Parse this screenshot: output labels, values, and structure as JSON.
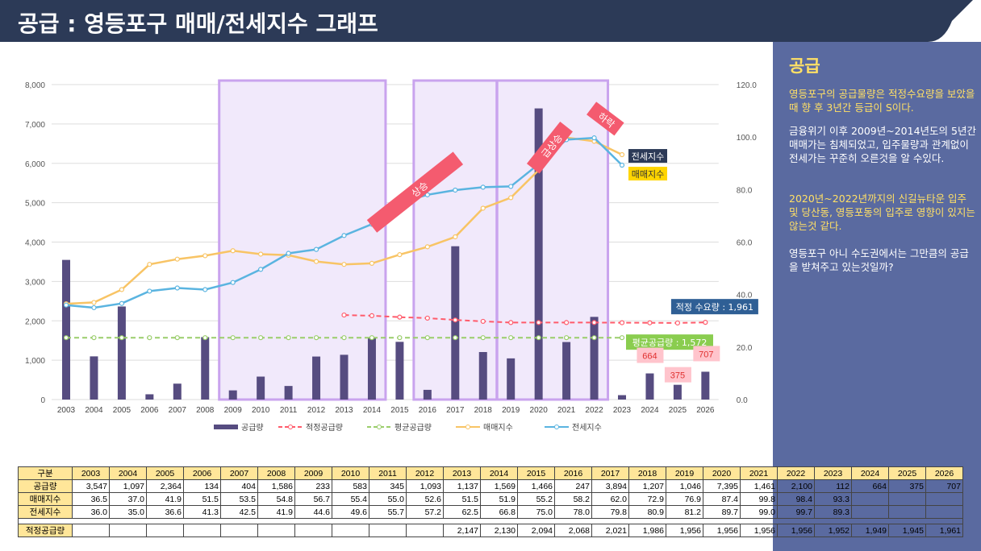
{
  "header": {
    "title": "공급 : 영등포구 매매/전세지수 그래프"
  },
  "sidebar": {
    "title": "공급",
    "p1": "영등포구의 공급물량은 적정수요량을 보았을때 향 후 3년간 등급이 S이다.",
    "p2": "금융위기 이후 2009년~2014년도의 5년간 매매가는 침체되었고, 입주물량과 관계없이 전세가는 꾸준히 오른것을 알 수있다.",
    "p3": "2020년~2022년까지의 신길뉴타운 입주 및 당산동, 영등포동의 입주로 영향이 있지는 않는것 같다.",
    "p4": "영등포구 아니 수도권에서는 그만큼의 공급을 받쳐주고 있는것일까?"
  },
  "chart_data": {
    "type": "bar",
    "categories": [
      "2003",
      "2004",
      "2005",
      "2006",
      "2007",
      "2008",
      "2009",
      "2010",
      "2011",
      "2012",
      "2013",
      "2014",
      "2015",
      "2016",
      "2017",
      "2018",
      "2019",
      "2020",
      "2021",
      "2022",
      "2023",
      "2024",
      "2025",
      "2026"
    ],
    "y_left": {
      "ylim": [
        0,
        8000
      ],
      "ticks": [
        "0",
        "1,000",
        "2,000",
        "3,000",
        "4,000",
        "5,000",
        "6,000",
        "7,000",
        "8,000"
      ]
    },
    "y_right": {
      "ylim": [
        0,
        120
      ],
      "ticks": [
        "0.0",
        "20.0",
        "40.0",
        "60.0",
        "80.0",
        "100.0",
        "120.0"
      ]
    },
    "series": [
      {
        "name": "공급량",
        "type": "bar",
        "axis": "left",
        "color": "#564c80",
        "values": [
          3547,
          1097,
          2364,
          134,
          404,
          1586,
          233,
          583,
          345,
          1093,
          1137,
          1569,
          1466,
          247,
          3894,
          1207,
          1046,
          7395,
          1461,
          2100,
          112,
          664,
          375,
          707
        ]
      },
      {
        "name": "적정공급량",
        "type": "line",
        "axis": "left",
        "color": "#ff5b6b",
        "dashed": true,
        "values": [
          null,
          null,
          null,
          null,
          null,
          null,
          null,
          null,
          null,
          null,
          2147,
          2130,
          2094,
          2068,
          2021,
          1986,
          1956,
          1956,
          1956,
          1956,
          1952,
          1949,
          1945,
          1961
        ]
      },
      {
        "name": "평균공급량",
        "type": "line",
        "axis": "left",
        "color": "#9acd6b",
        "dashed": true,
        "values": [
          1572,
          1572,
          1572,
          1572,
          1572,
          1572,
          1572,
          1572,
          1572,
          1572,
          1572,
          1572,
          1572,
          1572,
          1572,
          1572,
          1572,
          1572,
          1572,
          1572,
          1572,
          null,
          null,
          null
        ]
      },
      {
        "name": "매매지수",
        "type": "line",
        "axis": "right",
        "color": "#f8c465",
        "values": [
          36.5,
          37.0,
          41.9,
          51.5,
          53.5,
          54.8,
          56.7,
          55.4,
          55.0,
          52.6,
          51.5,
          51.9,
          55.2,
          58.2,
          62.0,
          72.9,
          76.9,
          87.4,
          99.8,
          98.4,
          93.3,
          null,
          null,
          null
        ]
      },
      {
        "name": "전세지수",
        "type": "line",
        "axis": "right",
        "color": "#5ab4e0",
        "values": [
          36.0,
          35.0,
          36.6,
          41.3,
          42.5,
          41.9,
          44.6,
          49.6,
          55.7,
          57.2,
          62.5,
          66.8,
          75.0,
          78.0,
          79.8,
          80.9,
          81.2,
          89.7,
          99.0,
          99.7,
          89.3,
          null,
          null,
          null
        ]
      }
    ],
    "highlight_periods": [
      [
        "2009",
        "2014"
      ],
      [
        "2016",
        "2018"
      ],
      [
        "2019",
        "2022"
      ]
    ],
    "arrow_labels": [
      "상승",
      "급상승",
      "하락"
    ],
    "series_end_labels": [
      "전세지수",
      "매매지수"
    ],
    "reference_labels": {
      "proper": "적정 수요량 : 1,961",
      "average": "평균공급량 : 1,572"
    },
    "bar_value_labels": [
      "664",
      "375",
      "707"
    ]
  },
  "table": {
    "header_label": "구분",
    "years": [
      "2003",
      "2004",
      "2005",
      "2006",
      "2007",
      "2008",
      "2009",
      "2010",
      "2011",
      "2012",
      "2013",
      "2014",
      "2015",
      "2016",
      "2017",
      "2018",
      "2019",
      "2020",
      "2021",
      "2022",
      "2023",
      "2024",
      "2025",
      "2026"
    ],
    "rows": [
      {
        "label": "공급량",
        "values": [
          "3,547",
          "1,097",
          "2,364",
          "134",
          "404",
          "1,586",
          "233",
          "583",
          "345",
          "1,093",
          "1,137",
          "1,569",
          "1,466",
          "247",
          "3,894",
          "1,207",
          "1,046",
          "7,395",
          "1,461",
          "2,100",
          "112",
          "664",
          "375",
          "707"
        ]
      },
      {
        "label": "매매지수",
        "values": [
          "36.5",
          "37.0",
          "41.9",
          "51.5",
          "53.5",
          "54.8",
          "56.7",
          "55.4",
          "55.0",
          "52.6",
          "51.5",
          "51.9",
          "55.2",
          "58.2",
          "62.0",
          "72.9",
          "76.9",
          "87.4",
          "99.8",
          "98.4",
          "93.3",
          "",
          "",
          ""
        ]
      },
      {
        "label": "전세지수",
        "values": [
          "36.0",
          "35.0",
          "36.6",
          "41.3",
          "42.5",
          "41.9",
          "44.6",
          "49.6",
          "55.7",
          "57.2",
          "62.5",
          "66.8",
          "75.0",
          "78.0",
          "79.8",
          "80.9",
          "81.2",
          "89.7",
          "99.0",
          "99.7",
          "89.3",
          "",
          "",
          ""
        ]
      },
      {
        "label": "적정공급량",
        "values": [
          "",
          "",
          "",
          "",
          "",
          "",
          "",
          "",
          "",
          "",
          "2,147",
          "2,130",
          "2,094",
          "2,068",
          "2,021",
          "1,986",
          "1,956",
          "1,956",
          "1,956",
          "1,956",
          "1,952",
          "1,949",
          "1,945",
          "1,961"
        ]
      }
    ]
  },
  "colors": {
    "header_bg": "#2c3a57",
    "sidebar_bg": "#5a6aa0",
    "sidebar_text": "#ffe066",
    "highlight_border": "#c9a3ee",
    "highlight_fill": "#f1e9fb",
    "arrow": "#f45b6f"
  }
}
